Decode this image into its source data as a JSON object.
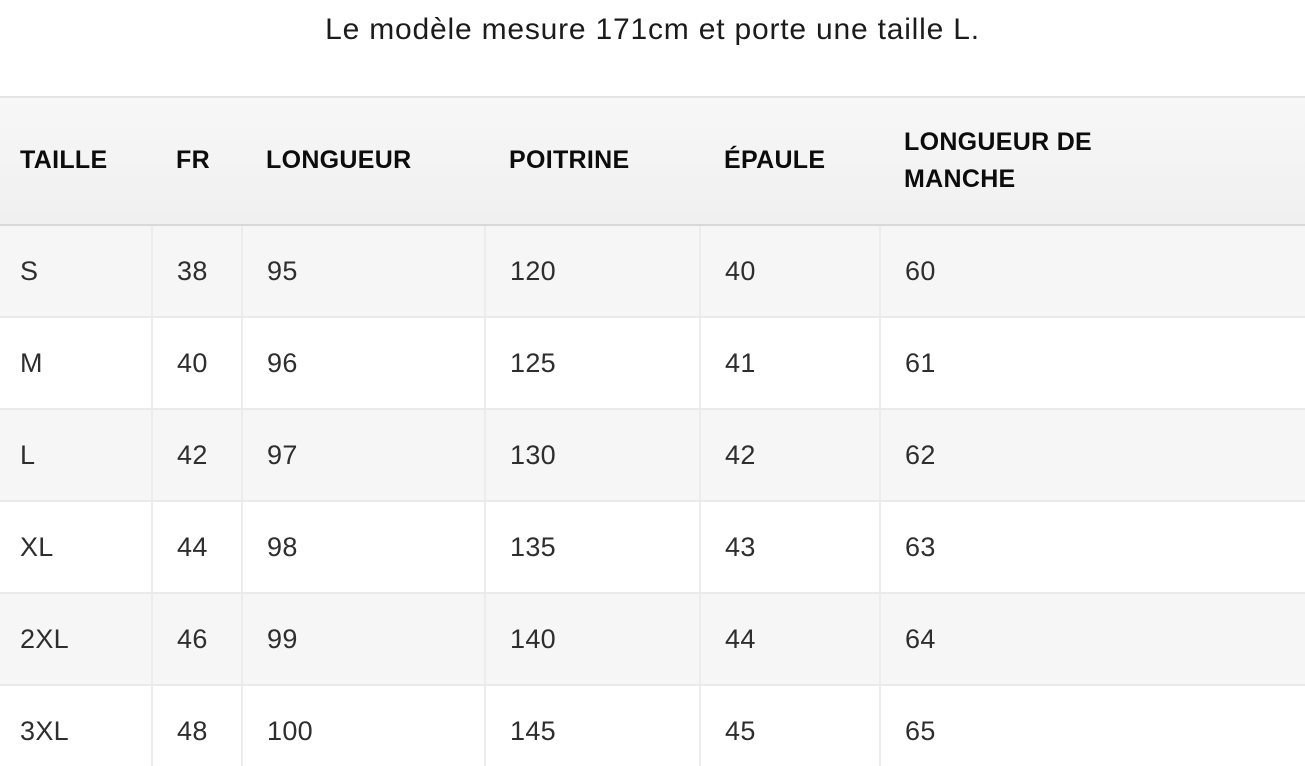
{
  "note": "Le modèle mesure 171cm et porte une taille L.",
  "chart_data": {
    "type": "table",
    "title": "Le modèle mesure 171cm et porte une taille L.",
    "columns": [
      "TAILLE",
      "FR",
      "LONGUEUR",
      "POITRINE",
      "ÉPAULE",
      "LONGUEUR DE MANCHE"
    ],
    "rows": [
      [
        "S",
        "38",
        "95",
        "120",
        "40",
        "60"
      ],
      [
        "M",
        "40",
        "96",
        "125",
        "41",
        "61"
      ],
      [
        "L",
        "42",
        "97",
        "130",
        "42",
        "62"
      ],
      [
        "XL",
        "44",
        "98",
        "135",
        "43",
        "63"
      ],
      [
        "2XL",
        "46",
        "99",
        "140",
        "44",
        "64"
      ],
      [
        "3XL",
        "48",
        "100",
        "145",
        "45",
        "65"
      ]
    ],
    "layout": {
      "row_alternating_shading": true,
      "header_position": "top",
      "units_implied": "cm"
    }
  },
  "colors": {
    "header_bg": "#f2f2f2",
    "row_alt_bg": "#f6f6f6",
    "row_bg": "#ffffff",
    "cell_border": "#ececec",
    "header_border": "#d8d8d8",
    "table_top_border": "#e4e4e4",
    "text": "#2e2e2e",
    "header_text": "#0c0c0c"
  }
}
